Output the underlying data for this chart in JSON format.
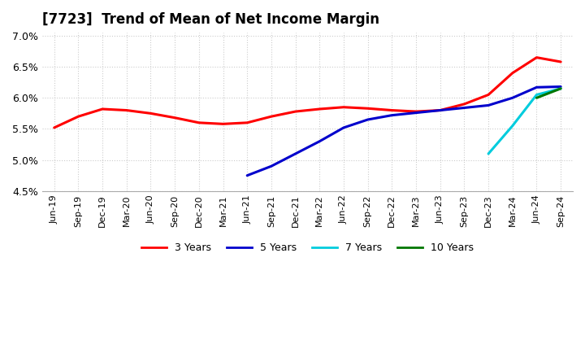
{
  "title": "[7723]  Trend of Mean of Net Income Margin",
  "background_color": "#ffffff",
  "grid_color": "#cccccc",
  "ylim": [
    4.5,
    7.05
  ],
  "yticks": [
    4.5,
    5.0,
    5.5,
    6.0,
    6.5,
    7.0
  ],
  "x_labels": [
    "Jun-19",
    "Sep-19",
    "Dec-19",
    "Mar-20",
    "Jun-20",
    "Sep-20",
    "Dec-20",
    "Mar-21",
    "Jun-21",
    "Sep-21",
    "Dec-21",
    "Mar-22",
    "Jun-22",
    "Sep-22",
    "Dec-22",
    "Mar-23",
    "Jun-23",
    "Sep-23",
    "Dec-23",
    "Mar-24",
    "Jun-24",
    "Sep-24"
  ],
  "series": {
    "3 Years": {
      "color": "#ff0000",
      "data": [
        5.52,
        5.7,
        5.82,
        5.8,
        5.75,
        5.68,
        5.6,
        5.58,
        5.6,
        5.7,
        5.78,
        5.82,
        5.85,
        5.83,
        5.8,
        5.78,
        5.8,
        5.9,
        6.05,
        6.4,
        6.65,
        6.58
      ]
    },
    "5 Years": {
      "color": "#0000cc",
      "data": [
        null,
        null,
        null,
        null,
        null,
        null,
        null,
        null,
        4.75,
        4.9,
        5.1,
        5.3,
        5.52,
        5.65,
        5.72,
        5.76,
        5.8,
        5.84,
        5.88,
        6.0,
        6.17,
        6.18
      ]
    },
    "7 Years": {
      "color": "#00ccdd",
      "data": [
        null,
        null,
        null,
        null,
        null,
        null,
        null,
        null,
        null,
        null,
        null,
        null,
        null,
        null,
        null,
        null,
        null,
        null,
        5.1,
        5.55,
        6.05,
        6.15
      ]
    },
    "10 Years": {
      "color": "#007700",
      "data": [
        null,
        null,
        null,
        null,
        null,
        null,
        null,
        null,
        null,
        null,
        null,
        null,
        null,
        null,
        null,
        null,
        null,
        null,
        null,
        null,
        6.0,
        6.15
      ]
    }
  },
  "legend_labels": [
    "3 Years",
    "5 Years",
    "7 Years",
    "10 Years"
  ],
  "legend_colors": [
    "#ff0000",
    "#0000cc",
    "#00ccdd",
    "#007700"
  ]
}
